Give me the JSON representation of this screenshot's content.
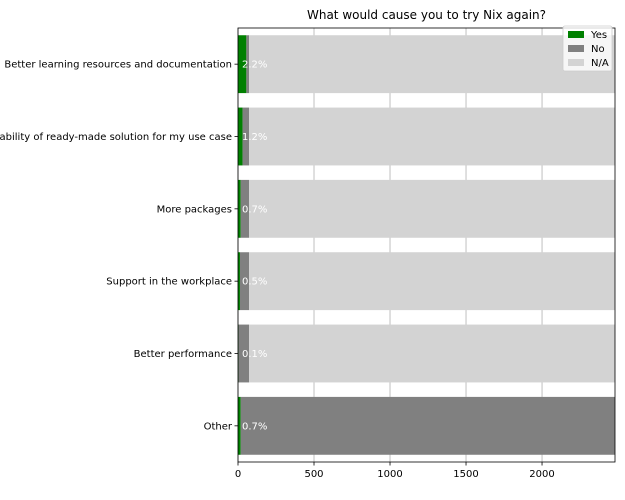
{
  "chart_data": {
    "type": "bar",
    "orientation": "horizontal",
    "stacked": true,
    "title": "What would cause you to try Nix again?",
    "xlabel": "",
    "ylabel": "",
    "xlim": [
      0,
      2480
    ],
    "xticks": [
      0,
      500,
      1000,
      1500,
      2000
    ],
    "grid": "vertical",
    "legend_position": "top-right",
    "categories": [
      "Better learning resources and documentation",
      "Availability of ready-made solution for my use case",
      "More packages",
      "Support in the workplace",
      "Better performance",
      "Other"
    ],
    "series": [
      {
        "name": "Yes",
        "color": "#008000",
        "values": [
          55,
          30,
          18,
          13,
          3,
          18
        ]
      },
      {
        "name": "No",
        "color": "#808080",
        "values": [
          18,
          43,
          55,
          60,
          70,
          2462
        ]
      },
      {
        "name": "N/A",
        "color": "#d3d3d3",
        "values": [
          2407,
          2407,
          2407,
          2407,
          2407,
          0
        ]
      }
    ],
    "data_labels": [
      "2.2%",
      "1.2%",
      "0.7%",
      "0.5%",
      "0.1%",
      "0.7%"
    ]
  }
}
